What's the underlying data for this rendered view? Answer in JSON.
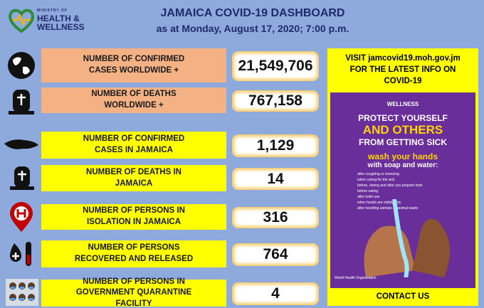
{
  "header": {
    "ministry": "MINISTRY OF",
    "health": "HEALTH &",
    "wellness": "WELLNESS",
    "title": "JAMAICA COVID-19 DASHBOARD",
    "subtitle": "as at Monday, August 17, 2020; 7:00 p.m."
  },
  "stats": [
    {
      "label": "NUMBER OF CONFIRMED CASES WORLDWIDE +",
      "value": "21,549,706"
    },
    {
      "label": "NUMBER OF DEATHS  WORLDWIDE +",
      "value": "767,158"
    },
    {
      "label": "NUMBER OF CONFIRMED CASES IN JAMAICA",
      "value": "1,129"
    },
    {
      "label": "NUMBER OF DEATHS  IN JAMAICA",
      "value": "14"
    },
    {
      "label": "NUMBER OF PERSONS IN ISOLATION IN JAMAICA",
      "value": "316"
    },
    {
      "label": "NUMBER OF PERSONS RECOVERED AND RELEASED",
      "value": "764"
    },
    {
      "label": "NUMBER OF PERSONS IN GOVERNMENT QUARANTINE FACILITY",
      "value": "4"
    }
  ],
  "panel": {
    "visit": "VISIT  jamcovid19.moh.gov.jm FOR THE LATEST INFO ON COVID-19",
    "poster": {
      "line1": "PROTECT YOURSELF",
      "line2": "AND OTHERS",
      "line3": "FROM GETTING SICK",
      "wash": "wash your hands",
      "soap": "with soap and water:",
      "items": [
        "after coughing or sneezing",
        "when caring for the sick",
        "before, during and after you prepare food",
        "before eating",
        "after toilet use",
        "when hands are visibly dirty",
        "after handling animals or animal waste"
      ],
      "who": "World Health Organization"
    },
    "contact": "CONTACT US"
  }
}
